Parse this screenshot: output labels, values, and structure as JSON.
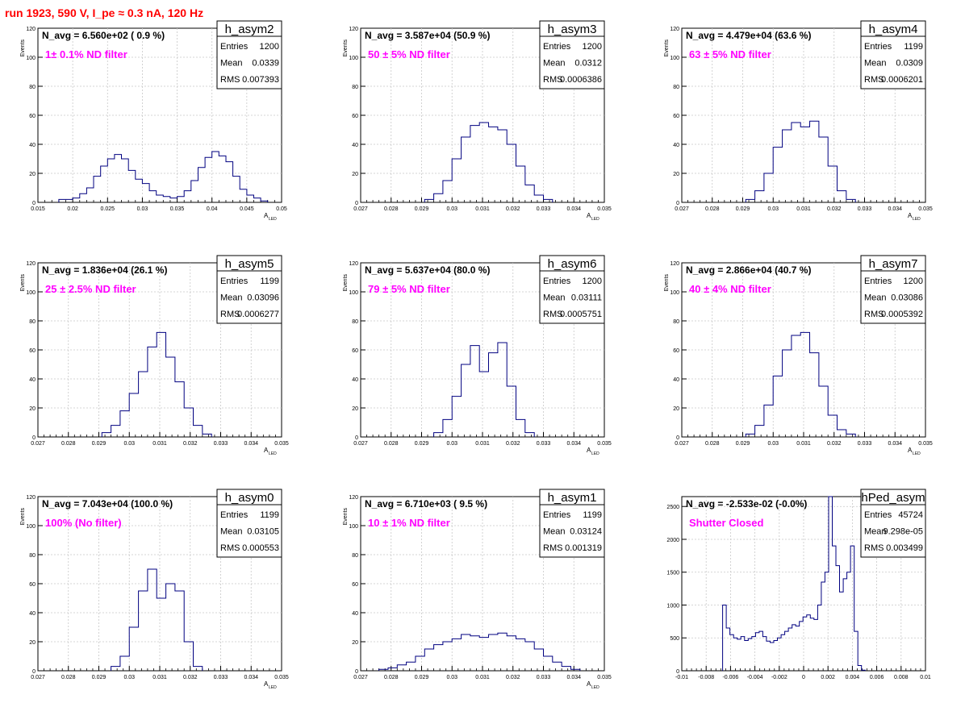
{
  "run_title": "run 1923,   590 V, I_pe ≈ 0.3 nA, 120 Hz",
  "colors": {
    "line": "#000080",
    "annotation": "#ff00ff",
    "title": "#ff0000",
    "grid": "#c8c8c8"
  },
  "chart_data": [
    {
      "type": "histogram",
      "name": "h_asym2",
      "navg_text": "N_avg = 6.560e+02 ( 0.9 %)",
      "filter_text": "1± 0.1% ND filter",
      "stats": [
        {
          "label": "Entries",
          "value": "1200"
        },
        {
          "label": "Mean",
          "value": "0.0339"
        },
        {
          "label": "RMS",
          "value": "0.007393"
        }
      ],
      "xlabel": "A",
      "xlabel_sub": "LED",
      "ylabel": "Events",
      "xlim": [
        0.015,
        0.05
      ],
      "ylim": [
        0,
        120
      ],
      "xticks": [
        "0.015",
        "0.02",
        "0.025",
        "0.03",
        "0.035",
        "0.04",
        "0.045",
        "0.05"
      ],
      "yticks": [
        "0",
        "20",
        "40",
        "60",
        "80",
        "100",
        "120"
      ],
      "x": [
        0.0185,
        0.0195,
        0.0205,
        0.0215,
        0.0225,
        0.0235,
        0.0245,
        0.0255,
        0.0265,
        0.0275,
        0.0285,
        0.0295,
        0.0305,
        0.0315,
        0.0325,
        0.0335,
        0.0345,
        0.0355,
        0.0365,
        0.0375,
        0.0385,
        0.0395,
        0.0405,
        0.0415,
        0.0425,
        0.0435,
        0.0445,
        0.0455,
        0.0465,
        0.0475
      ],
      "values": [
        2,
        2,
        3,
        6,
        10,
        18,
        25,
        30,
        33,
        30,
        22,
        16,
        13,
        8,
        5,
        4,
        3,
        4,
        8,
        15,
        24,
        31,
        35,
        32,
        28,
        18,
        9,
        5,
        3,
        1
      ]
    },
    {
      "type": "histogram",
      "name": "h_asym3",
      "navg_text": "N_avg = 3.587e+04 (50.9 %)",
      "filter_text": "50 ± 5% ND filter",
      "stats": [
        {
          "label": "Entries",
          "value": "1200"
        },
        {
          "label": "Mean",
          "value": "0.0312"
        },
        {
          "label": "RMS",
          "value": "0.0006386"
        }
      ],
      "xlabel": "A",
      "xlabel_sub": "LED",
      "ylabel": "Events",
      "xlim": [
        0.027,
        0.035
      ],
      "ylim": [
        0,
        120
      ],
      "xticks": [
        "0.027",
        "0.028",
        "0.029",
        "0.03",
        "0.031",
        "0.032",
        "0.033",
        "0.034",
        "0.035"
      ],
      "yticks": [
        "0",
        "20",
        "40",
        "60",
        "80",
        "100",
        "120"
      ],
      "x": [
        0.02925,
        0.02955,
        0.02985,
        0.03015,
        0.03045,
        0.03075,
        0.03105,
        0.03135,
        0.03165,
        0.03195,
        0.03225,
        0.03255,
        0.03285,
        0.03315
      ],
      "values": [
        2,
        6,
        15,
        30,
        45,
        53,
        55,
        52,
        50,
        40,
        25,
        12,
        5,
        2
      ]
    },
    {
      "type": "histogram",
      "name": "h_asym4",
      "navg_text": "N_avg = 4.479e+04 (63.6 %)",
      "filter_text": "63 ± 5% ND filter",
      "stats": [
        {
          "label": "Entries",
          "value": "1199"
        },
        {
          "label": "Mean",
          "value": "0.0309"
        },
        {
          "label": "RMS",
          "value": "0.0006201"
        }
      ],
      "xlabel": "A",
      "xlabel_sub": "LED",
      "ylabel": "Events",
      "xlim": [
        0.027,
        0.035
      ],
      "ylim": [
        0,
        120
      ],
      "xticks": [
        "0.027",
        "0.028",
        "0.029",
        "0.03",
        "0.031",
        "0.032",
        "0.033",
        "0.034",
        "0.035"
      ],
      "yticks": [
        "0",
        "20",
        "40",
        "60",
        "80",
        "100",
        "120"
      ],
      "x": [
        0.02925,
        0.02955,
        0.02985,
        0.03015,
        0.03045,
        0.03075,
        0.03105,
        0.03135,
        0.03165,
        0.03195,
        0.03225,
        0.03255
      ],
      "values": [
        2,
        8,
        20,
        38,
        50,
        55,
        52,
        56,
        45,
        25,
        8,
        2
      ]
    },
    {
      "type": "histogram",
      "name": "h_asym5",
      "navg_text": "N_avg = 1.836e+04 (26.1 %)",
      "filter_text": "25 ± 2.5% ND filter",
      "stats": [
        {
          "label": "Entries",
          "value": "1199"
        },
        {
          "label": "Mean",
          "value": "0.03096"
        },
        {
          "label": "RMS",
          "value": "0.0006277"
        }
      ],
      "xlabel": "A",
      "xlabel_sub": "LED",
      "ylabel": "Events",
      "xlim": [
        0.027,
        0.035
      ],
      "ylim": [
        0,
        120
      ],
      "xticks": [
        "0.027",
        "0.028",
        "0.029",
        "0.03",
        "0.031",
        "0.032",
        "0.033",
        "0.034",
        "0.035"
      ],
      "yticks": [
        "0",
        "20",
        "40",
        "60",
        "80",
        "100",
        "120"
      ],
      "x": [
        0.02925,
        0.02955,
        0.02985,
        0.03015,
        0.03045,
        0.03075,
        0.03105,
        0.03135,
        0.03165,
        0.03195,
        0.03225,
        0.03255
      ],
      "values": [
        3,
        8,
        18,
        30,
        45,
        62,
        72,
        55,
        38,
        20,
        8,
        2
      ]
    },
    {
      "type": "histogram",
      "name": "h_asym6",
      "navg_text": "N_avg = 5.637e+04 (80.0 %)",
      "filter_text": "79 ± 5% ND filter",
      "stats": [
        {
          "label": "Entries",
          "value": "1200"
        },
        {
          "label": "Mean",
          "value": "0.03111"
        },
        {
          "label": "RMS",
          "value": "0.0005751"
        }
      ],
      "xlabel": "A",
      "xlabel_sub": "LED",
      "ylabel": "Events",
      "xlim": [
        0.027,
        0.035
      ],
      "ylim": [
        0,
        120
      ],
      "xticks": [
        "0.027",
        "0.028",
        "0.029",
        "0.03",
        "0.031",
        "0.032",
        "0.033",
        "0.034",
        "0.035"
      ],
      "yticks": [
        "0",
        "20",
        "40",
        "60",
        "80",
        "100",
        "120"
      ],
      "x": [
        0.02955,
        0.02985,
        0.03015,
        0.03045,
        0.03075,
        0.03105,
        0.03135,
        0.03165,
        0.03195,
        0.03225,
        0.03255
      ],
      "values": [
        3,
        12,
        28,
        50,
        63,
        45,
        58,
        65,
        35,
        12,
        3
      ]
    },
    {
      "type": "histogram",
      "name": "h_asym7",
      "navg_text": "N_avg = 2.866e+04 (40.7 %)",
      "filter_text": "40 ± 4% ND filter",
      "stats": [
        {
          "label": "Entries",
          "value": "1200"
        },
        {
          "label": "Mean",
          "value": "0.03086"
        },
        {
          "label": "RMS",
          "value": "0.0005392"
        }
      ],
      "xlabel": "A",
      "xlabel_sub": "LED",
      "ylabel": "Events",
      "xlim": [
        0.027,
        0.035
      ],
      "ylim": [
        0,
        120
      ],
      "xticks": [
        "0.027",
        "0.028",
        "0.029",
        "0.03",
        "0.031",
        "0.032",
        "0.033",
        "0.034",
        "0.035"
      ],
      "yticks": [
        "0",
        "20",
        "40",
        "60",
        "80",
        "100",
        "120"
      ],
      "x": [
        0.02925,
        0.02955,
        0.02985,
        0.03015,
        0.03045,
        0.03075,
        0.03105,
        0.03135,
        0.03165,
        0.03195,
        0.03225,
        0.03255
      ],
      "values": [
        2,
        8,
        22,
        42,
        60,
        70,
        72,
        58,
        35,
        15,
        5,
        2
      ]
    },
    {
      "type": "histogram",
      "name": "h_asym0",
      "navg_text": "N_avg = 7.043e+04 (100.0 %)",
      "filter_text": "100% (No filter)",
      "stats": [
        {
          "label": "Entries",
          "value": "1199"
        },
        {
          "label": "Mean",
          "value": "0.03105"
        },
        {
          "label": "RMS",
          "value": "0.000553"
        }
      ],
      "xlabel": "A",
      "xlabel_sub": "LED",
      "ylabel": "Events",
      "xlim": [
        0.027,
        0.035
      ],
      "ylim": [
        0,
        120
      ],
      "xticks": [
        "0.027",
        "0.028",
        "0.029",
        "0.03",
        "0.031",
        "0.032",
        "0.033",
        "0.034",
        "0.035"
      ],
      "yticks": [
        "0",
        "20",
        "40",
        "60",
        "80",
        "100",
        "120"
      ],
      "x": [
        0.02955,
        0.02985,
        0.03015,
        0.03045,
        0.03075,
        0.03105,
        0.03135,
        0.03165,
        0.03195,
        0.03225
      ],
      "values": [
        3,
        10,
        30,
        55,
        70,
        50,
        60,
        55,
        20,
        3
      ]
    },
    {
      "type": "histogram",
      "name": "h_asym1",
      "navg_text": "N_avg = 6.710e+03 ( 9.5 %)",
      "filter_text": "10 ± 1% ND filter",
      "stats": [
        {
          "label": "Entries",
          "value": "1199"
        },
        {
          "label": "Mean",
          "value": "0.03124"
        },
        {
          "label": "RMS",
          "value": "0.001319"
        }
      ],
      "xlabel": "A",
      "xlabel_sub": "LED",
      "ylabel": "Events",
      "xlim": [
        0.027,
        0.035
      ],
      "ylim": [
        0,
        120
      ],
      "xticks": [
        "0.027",
        "0.028",
        "0.029",
        "0.03",
        "0.031",
        "0.032",
        "0.033",
        "0.034",
        "0.035"
      ],
      "yticks": [
        "0",
        "20",
        "40",
        "60",
        "80",
        "100",
        "120"
      ],
      "x": [
        0.02775,
        0.02805,
        0.02835,
        0.02865,
        0.02895,
        0.02925,
        0.02955,
        0.02985,
        0.03015,
        0.03045,
        0.03075,
        0.03105,
        0.03135,
        0.03165,
        0.03195,
        0.03225,
        0.03255,
        0.03285,
        0.03315,
        0.03345,
        0.03375,
        0.03405
      ],
      "values": [
        1,
        2,
        4,
        6,
        10,
        15,
        18,
        20,
        22,
        25,
        24,
        23,
        25,
        26,
        24,
        22,
        20,
        15,
        10,
        6,
        3,
        1
      ]
    },
    {
      "type": "histogram",
      "name": "hPed_asym",
      "navg_text": "N_avg = -2.533e-02 (-0.0%)",
      "filter_text": "Shutter Closed",
      "stats": [
        {
          "label": "Entries",
          "value": "45724"
        },
        {
          "label": "Mean",
          "value": "9.298e-05"
        },
        {
          "label": "RMS",
          "value": "0.003499"
        }
      ],
      "xlabel": "",
      "xlabel_sub": "",
      "ylabel": "",
      "xlim": [
        -0.01,
        0.01
      ],
      "ylim": [
        0,
        2650
      ],
      "xticks": [
        "-0.01",
        "-0.008",
        "-0.006",
        "-0.004",
        "-0.002",
        "0",
        "0.002",
        "0.004",
        "0.006",
        "0.008",
        "0.01"
      ],
      "yticks": [
        "0",
        "500",
        "1000",
        "1500",
        "2000",
        "2500"
      ],
      "x": [
        -0.0065,
        -0.0062,
        -0.0059,
        -0.0056,
        -0.0053,
        -0.005,
        -0.0047,
        -0.0044,
        -0.0041,
        -0.0038,
        -0.0035,
        -0.0032,
        -0.0029,
        -0.0026,
        -0.0023,
        -0.002,
        -0.0017,
        -0.0014,
        -0.0011,
        -0.0008,
        -0.0005,
        -0.0002,
        0.0001,
        0.0004,
        0.0007,
        0.001,
        0.0013,
        0.0016,
        0.0019,
        0.0022,
        0.0025,
        0.0028,
        0.0031,
        0.0034,
        0.0037,
        0.004,
        0.0043,
        0.0046,
        0.0049
      ],
      "values": [
        1000,
        650,
        550,
        500,
        480,
        520,
        460,
        490,
        520,
        580,
        600,
        520,
        450,
        430,
        460,
        500,
        550,
        600,
        650,
        700,
        680,
        750,
        820,
        850,
        800,
        780,
        1000,
        1350,
        1500,
        2700,
        1900,
        1600,
        1200,
        1400,
        1500,
        1900,
        600,
        80,
        10
      ]
    }
  ]
}
